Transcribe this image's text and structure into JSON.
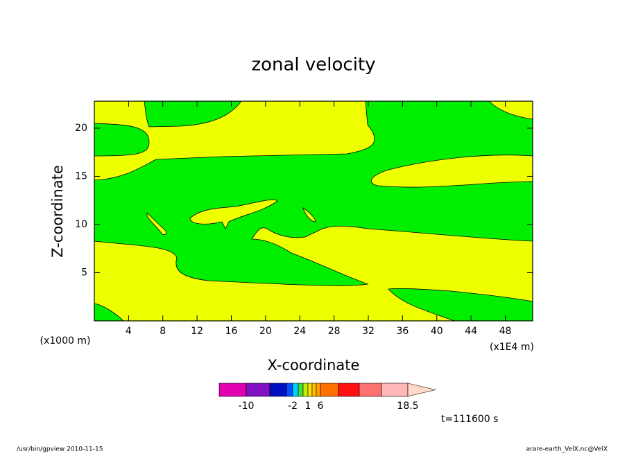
{
  "chart_data": {
    "type": "contour",
    "title": "zonal velocity",
    "xlabel": "X-coordinate",
    "ylabel": "Z-coordinate",
    "x_unit_left": "(x1000 m)",
    "x_unit_right": "(x1E4 m)",
    "xlim": [
      0,
      51.2
    ],
    "ylim": [
      0,
      22.8
    ],
    "xticks": [
      4,
      8,
      12,
      16,
      20,
      24,
      28,
      32,
      36,
      40,
      44,
      48
    ],
    "yticks": [
      5,
      10,
      15,
      20
    ],
    "fill_colors": {
      "low": "#00ee00",
      "high": "#eeff00"
    },
    "colorbar": {
      "colors": [
        "#e000b0",
        "#8010c0",
        "#0010c0",
        "#0050ff",
        "#00d0ff",
        "#40e040",
        "#c0f000",
        "#ffe000",
        "#ffc000",
        "#ffa000",
        "#ff7000",
        "#ff1010",
        "#ff7070",
        "#ffb8b8",
        "#ffd8c8"
      ],
      "ticks": [
        -10,
        -2,
        1,
        6,
        18.5
      ]
    },
    "time_label": "t=111600 s",
    "footer_left": "/usr/bin/gpview   2010-11-15",
    "footer_right": "arare-earth_VelX.nc@VelX"
  }
}
